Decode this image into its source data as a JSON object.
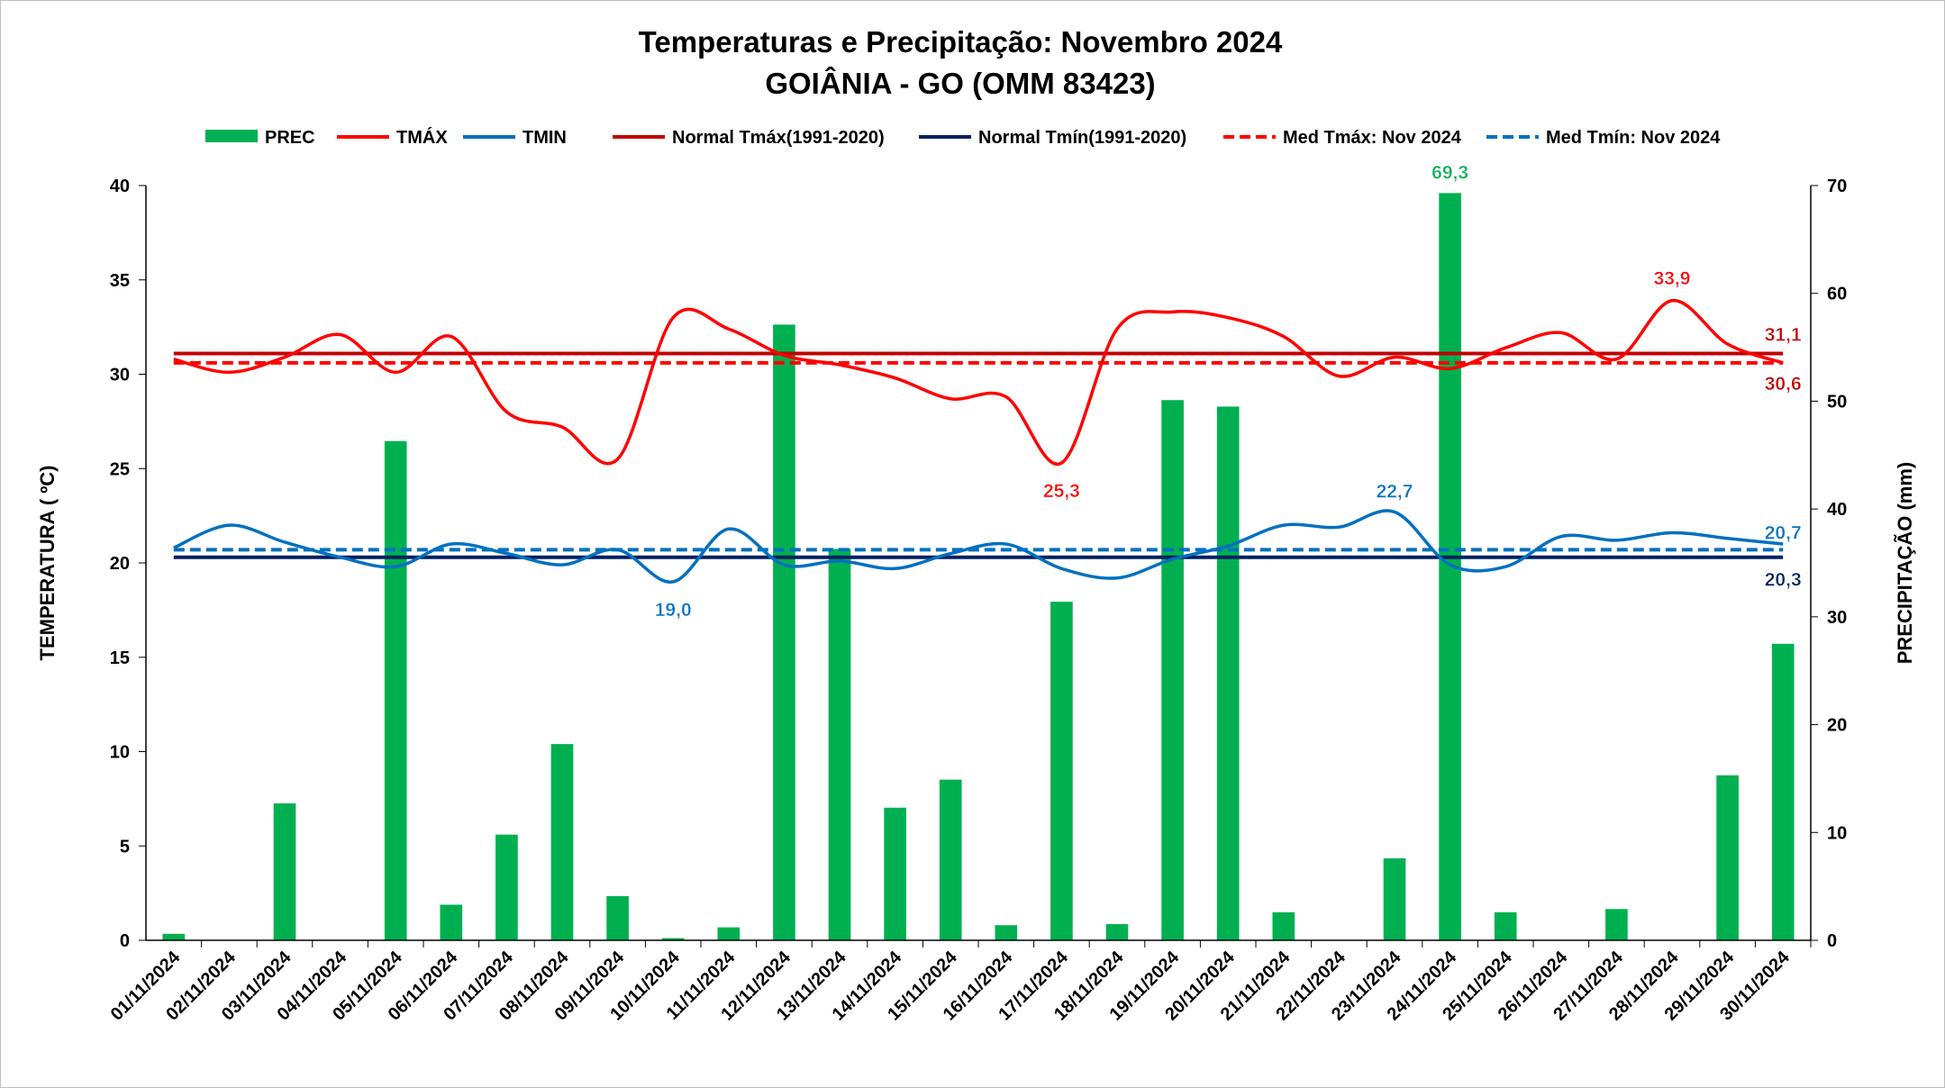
{
  "chart_data": {
    "type": "bar+line",
    "title": "Temperaturas e Precipitação: Novembro 2024",
    "subtitle": "GOIÂNIA - GO (OMM 83423)",
    "ylabel": "TEMPERATURA ( ºC)",
    "y2label": "PRECIPITAÇÃO (mm)",
    "ylim": [
      0,
      40
    ],
    "y2lim": [
      0,
      70
    ],
    "yticks": [
      "0",
      "5",
      "10",
      "15",
      "20",
      "25",
      "30",
      "35",
      "40"
    ],
    "y2ticks": [
      "0",
      "10",
      "20",
      "30",
      "40",
      "50",
      "60",
      "70"
    ],
    "legend_position": "top",
    "categories": [
      "01/11/2024",
      "02/11/2024",
      "03/11/2024",
      "04/11/2024",
      "05/11/2024",
      "06/11/2024",
      "07/11/2024",
      "08/11/2024",
      "09/11/2024",
      "10/11/2024",
      "11/11/2024",
      "12/11/2024",
      "13/11/2024",
      "14/11/2024",
      "15/11/2024",
      "16/11/2024",
      "17/11/2024",
      "18/11/2024",
      "19/11/2024",
      "20/11/2024",
      "21/11/2024",
      "22/11/2024",
      "23/11/2024",
      "24/11/2024",
      "25/11/2024",
      "26/11/2024",
      "27/11/2024",
      "28/11/2024",
      "29/11/2024",
      "30/11/2024"
    ],
    "series": [
      {
        "name": "PREC",
        "type": "bar",
        "axis": "right",
        "color": "#00b050",
        "values": [
          0.6,
          0,
          12.7,
          0,
          46.3,
          3.3,
          9.8,
          18.2,
          4.1,
          0.2,
          1.2,
          57.1,
          36.3,
          12.3,
          14.9,
          1.4,
          31.4,
          1.5,
          50.1,
          49.5,
          2.6,
          0,
          7.6,
          69.3,
          2.6,
          0,
          2.9,
          0,
          15.3,
          27.5
        ]
      },
      {
        "name": "TMÁX",
        "type": "line",
        "axis": "left",
        "color": "#ff0000",
        "values": [
          30.8,
          30.1,
          30.9,
          32.1,
          30.1,
          32.0,
          28.0,
          27.2,
          25.5,
          33.0,
          32.4,
          31.0,
          30.5,
          29.8,
          28.7,
          28.8,
          25.3,
          32.4,
          33.3,
          33.0,
          32.0,
          29.9,
          30.9,
          30.3,
          31.4,
          32.2,
          30.8,
          33.9,
          31.6,
          30.6
        ]
      },
      {
        "name": "TMIN",
        "type": "line",
        "axis": "left",
        "color": "#0070c0",
        "values": [
          20.8,
          22.0,
          21.1,
          20.3,
          19.8,
          21.0,
          20.5,
          19.9,
          20.7,
          19.0,
          21.8,
          19.9,
          20.1,
          19.7,
          20.5,
          21.0,
          19.7,
          19.2,
          20.2,
          20.9,
          22.0,
          21.9,
          22.7,
          19.9,
          19.8,
          21.4,
          21.2,
          21.6,
          21.3,
          21.0
        ]
      },
      {
        "name": "Normal Tmáx(1991-2020)",
        "type": "hline",
        "axis": "left",
        "color": "#c00000",
        "value": 31.1
      },
      {
        "name": "Normal Tmín(1991-2020)",
        "type": "hline",
        "axis": "left",
        "color": "#002060",
        "value": 20.3
      },
      {
        "name": "Med Tmáx: Nov 2024",
        "type": "hline-dashed",
        "axis": "left",
        "color": "#ff0000",
        "value": 30.6
      },
      {
        "name": "Med Tmín: Nov 2024",
        "type": "hline-dashed",
        "axis": "left",
        "color": "#0070c0",
        "value": 20.7
      }
    ],
    "annotations": [
      {
        "text": "69,3",
        "series": "PREC",
        "index": 23,
        "color": "#00b050"
      },
      {
        "text": "33,9",
        "series": "TMÁX",
        "index": 27,
        "color": "#ff0000"
      },
      {
        "text": "25,3",
        "series": "TMÁX",
        "index": 16,
        "color": "#ff0000"
      },
      {
        "text": "22,7",
        "series": "TMIN",
        "index": 22,
        "color": "#0070c0"
      },
      {
        "text": "19,0",
        "series": "TMIN",
        "index": 9,
        "color": "#0070c0"
      },
      {
        "text": "31,1",
        "series": "Normal Tmáx(1991-2020)",
        "index": 29,
        "color": "#c00000"
      },
      {
        "text": "30,6",
        "series": "Med Tmáx: Nov 2024",
        "index": 29,
        "color": "#c00000"
      },
      {
        "text": "20,7",
        "series": "Med Tmín: Nov 2024",
        "index": 29,
        "color": "#0070c0"
      },
      {
        "text": "20,3",
        "series": "Normal Tmín(1991-2020)",
        "index": 29,
        "color": "#002060"
      }
    ]
  }
}
